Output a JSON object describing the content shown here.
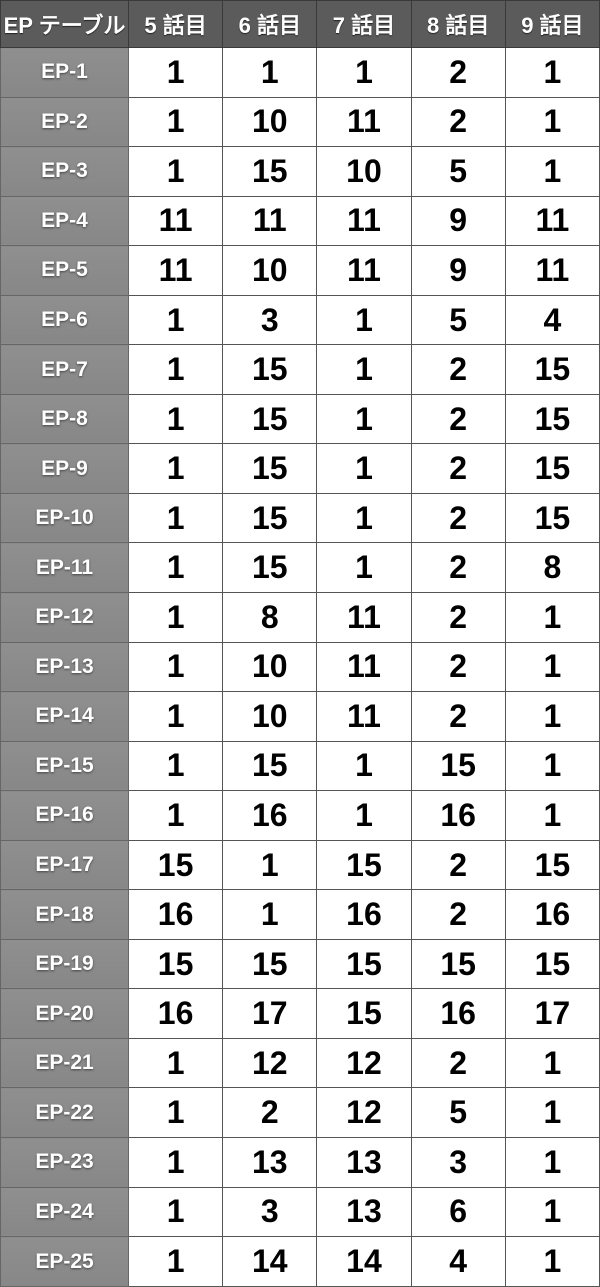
{
  "table": {
    "headers": [
      "EP テーブル",
      "5 話目",
      "6 話目",
      "7 話目",
      "8 話目",
      "9 話目"
    ],
    "rows": [
      {
        "label": "EP-1",
        "values": [
          "1",
          "1",
          "1",
          "2",
          "1"
        ]
      },
      {
        "label": "EP-2",
        "values": [
          "1",
          "10",
          "11",
          "2",
          "1"
        ]
      },
      {
        "label": "EP-3",
        "values": [
          "1",
          "15",
          "10",
          "5",
          "1"
        ]
      },
      {
        "label": "EP-4",
        "values": [
          "11",
          "11",
          "11",
          "9",
          "11"
        ]
      },
      {
        "label": "EP-5",
        "values": [
          "11",
          "10",
          "11",
          "9",
          "11"
        ]
      },
      {
        "label": "EP-6",
        "values": [
          "1",
          "3",
          "1",
          "5",
          "4"
        ]
      },
      {
        "label": "EP-7",
        "values": [
          "1",
          "15",
          "1",
          "2",
          "15"
        ]
      },
      {
        "label": "EP-8",
        "values": [
          "1",
          "15",
          "1",
          "2",
          "15"
        ]
      },
      {
        "label": "EP-9",
        "values": [
          "1",
          "15",
          "1",
          "2",
          "15"
        ]
      },
      {
        "label": "EP-10",
        "values": [
          "1",
          "15",
          "1",
          "2",
          "15"
        ]
      },
      {
        "label": "EP-11",
        "values": [
          "1",
          "15",
          "1",
          "2",
          "8"
        ]
      },
      {
        "label": "EP-12",
        "values": [
          "1",
          "8",
          "11",
          "2",
          "1"
        ]
      },
      {
        "label": "EP-13",
        "values": [
          "1",
          "10",
          "11",
          "2",
          "1"
        ]
      },
      {
        "label": "EP-14",
        "values": [
          "1",
          "10",
          "11",
          "2",
          "1"
        ]
      },
      {
        "label": "EP-15",
        "values": [
          "1",
          "15",
          "1",
          "15",
          "1"
        ]
      },
      {
        "label": "EP-16",
        "values": [
          "1",
          "16",
          "1",
          "16",
          "1"
        ]
      },
      {
        "label": "EP-17",
        "values": [
          "15",
          "1",
          "15",
          "2",
          "15"
        ]
      },
      {
        "label": "EP-18",
        "values": [
          "16",
          "1",
          "16",
          "2",
          "16"
        ]
      },
      {
        "label": "EP-19",
        "values": [
          "15",
          "15",
          "15",
          "15",
          "15"
        ]
      },
      {
        "label": "EP-20",
        "values": [
          "16",
          "17",
          "15",
          "16",
          "17"
        ]
      },
      {
        "label": "EP-21",
        "values": [
          "1",
          "12",
          "12",
          "2",
          "1"
        ]
      },
      {
        "label": "EP-22",
        "values": [
          "1",
          "2",
          "12",
          "5",
          "1"
        ]
      },
      {
        "label": "EP-23",
        "values": [
          "1",
          "13",
          "13",
          "3",
          "1"
        ]
      },
      {
        "label": "EP-24",
        "values": [
          "1",
          "3",
          "13",
          "6",
          "1"
        ]
      },
      {
        "label": "EP-25",
        "values": [
          "1",
          "14",
          "14",
          "4",
          "1"
        ]
      }
    ]
  },
  "colors": {
    "header_bg": "#5b5b5b",
    "row_header_bg": "#8b8b8b",
    "cell_bg": "#ffffff"
  }
}
